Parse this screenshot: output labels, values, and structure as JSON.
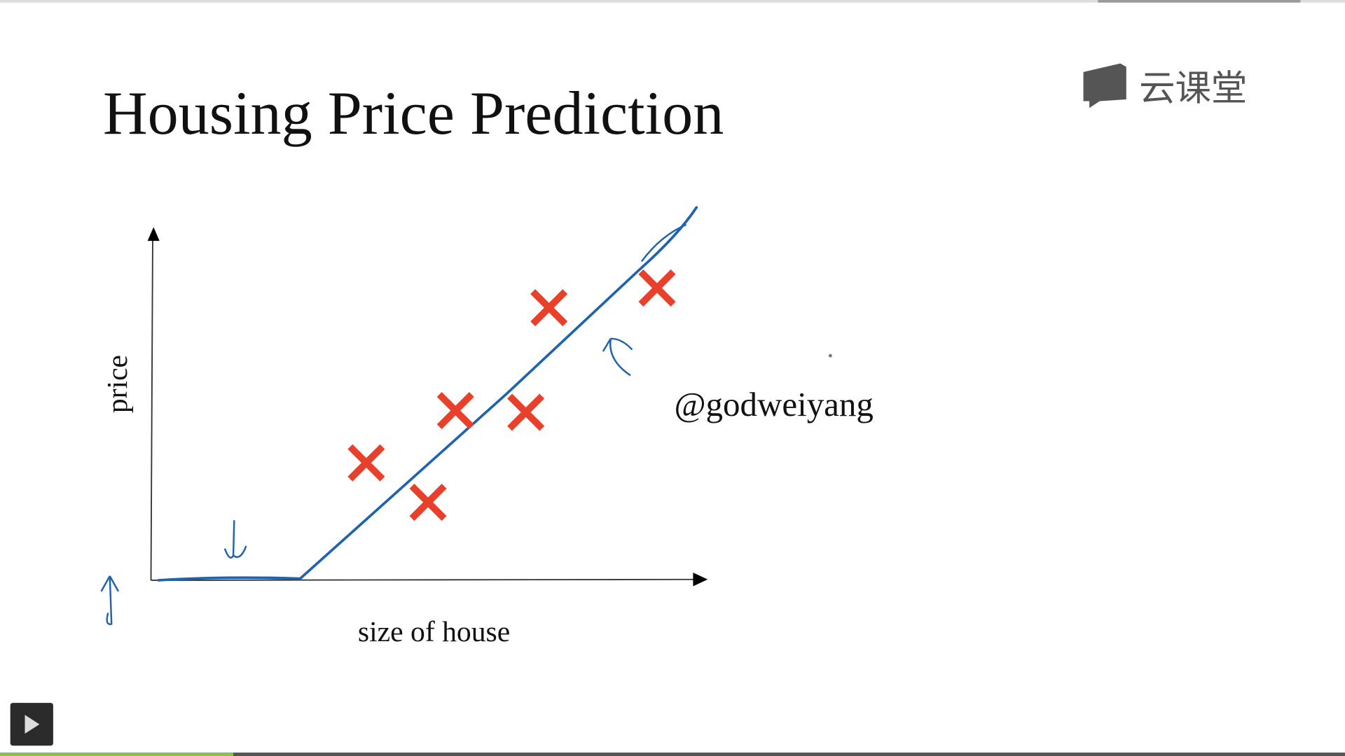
{
  "header": {
    "title": "Housing Price Prediction",
    "logo": "云课堂"
  },
  "chart": {
    "y_label": "price",
    "x_label": "size of house"
  },
  "watermark": "@godweiyang"
}
